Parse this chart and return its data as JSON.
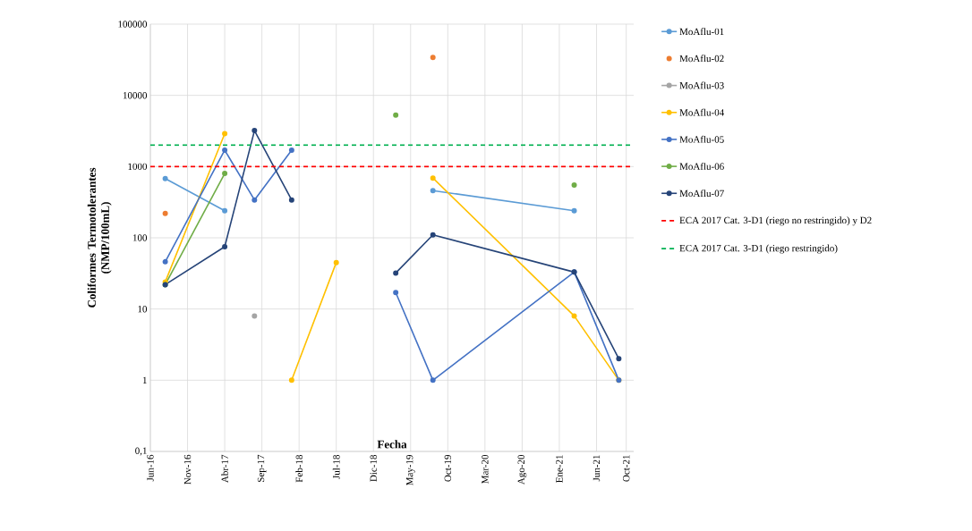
{
  "chart_data": {
    "type": "line",
    "xlabel": "Fecha",
    "ylabel": "Coliformes Termotolerantes (NMP/100mL)",
    "x": [
      "2016-08",
      "2017-04",
      "2017-08",
      "2018-01",
      "2018-07",
      "2019-03",
      "2019-08",
      "2021-03",
      "2021-09"
    ],
    "series": [
      {
        "name": "MoAflu-01",
        "color": "#5b9bd5",
        "values": [
          680,
          240,
          null,
          null,
          null,
          null,
          460,
          240,
          null
        ]
      },
      {
        "name": "MoAflu-02",
        "type": "scatter",
        "color": "#ed7d31",
        "values": [
          220,
          null,
          null,
          null,
          null,
          null,
          34000,
          null,
          null
        ]
      },
      {
        "name": "MoAflu-03",
        "color": "#a5a5a5",
        "values": [
          null,
          null,
          8,
          null,
          null,
          null,
          null,
          null,
          null
        ]
      },
      {
        "name": "MoAflu-04",
        "color": "#ffc000",
        "values": [
          24,
          2900,
          null,
          1,
          45,
          null,
          690,
          8,
          1
        ]
      },
      {
        "name": "MoAflu-05",
        "color": "#4472c4",
        "values": [
          46,
          1700,
          340,
          1700,
          null,
          17,
          1,
          33,
          1
        ]
      },
      {
        "name": "MoAflu-06",
        "color": "#70ad47",
        "values": [
          22,
          800,
          null,
          null,
          null,
          5300,
          null,
          550,
          null
        ]
      },
      {
        "name": "MoAflu-07",
        "color": "#264478",
        "values": [
          22,
          75,
          3200,
          340,
          null,
          32,
          110,
          33,
          2
        ]
      }
    ],
    "ref_lines": [
      {
        "axis": "y",
        "value": 1000,
        "label": "ECA 2017 Cat. 3-D1 (riego no restringido) y D2",
        "color": "#ff0000",
        "line_style": "dashed"
      },
      {
        "axis": "y",
        "value": 2000,
        "label": "ECA 2017 Cat. 3-D1 (riego restringido)",
        "color": "#00b050",
        "line_style": "dashed"
      }
    ],
    "xlim": [
      "2016-06",
      "2021-11"
    ],
    "xticks": [
      {
        "value": "2016-06",
        "label": "Jun-16"
      },
      {
        "value": "2016-11",
        "label": "Nov-16"
      },
      {
        "value": "2017-04",
        "label": "Abr-17"
      },
      {
        "value": "2017-09",
        "label": "Sep-17"
      },
      {
        "value": "2018-02",
        "label": "Feb-18"
      },
      {
        "value": "2018-07",
        "label": "Jul-18"
      },
      {
        "value": "2018-12",
        "label": "Dic-18"
      },
      {
        "value": "2019-05",
        "label": "May-19"
      },
      {
        "value": "2019-10",
        "label": "Oct-19"
      },
      {
        "value": "2020-03",
        "label": "Mar-20"
      },
      {
        "value": "2020-08",
        "label": "Ago-20"
      },
      {
        "value": "2021-01",
        "label": "Ene-21"
      },
      {
        "value": "2021-06",
        "label": "Jun-21"
      },
      {
        "value": "2021-10",
        "label": "Oct-21"
      }
    ],
    "ylim": [
      0.1,
      100000
    ],
    "yticks": [
      {
        "value": 0.1,
        "label": "0,1"
      },
      1,
      10,
      100,
      1000,
      10000,
      100000
    ],
    "log": "y",
    "grid": true,
    "legend": "right",
    "marker": "circle"
  }
}
